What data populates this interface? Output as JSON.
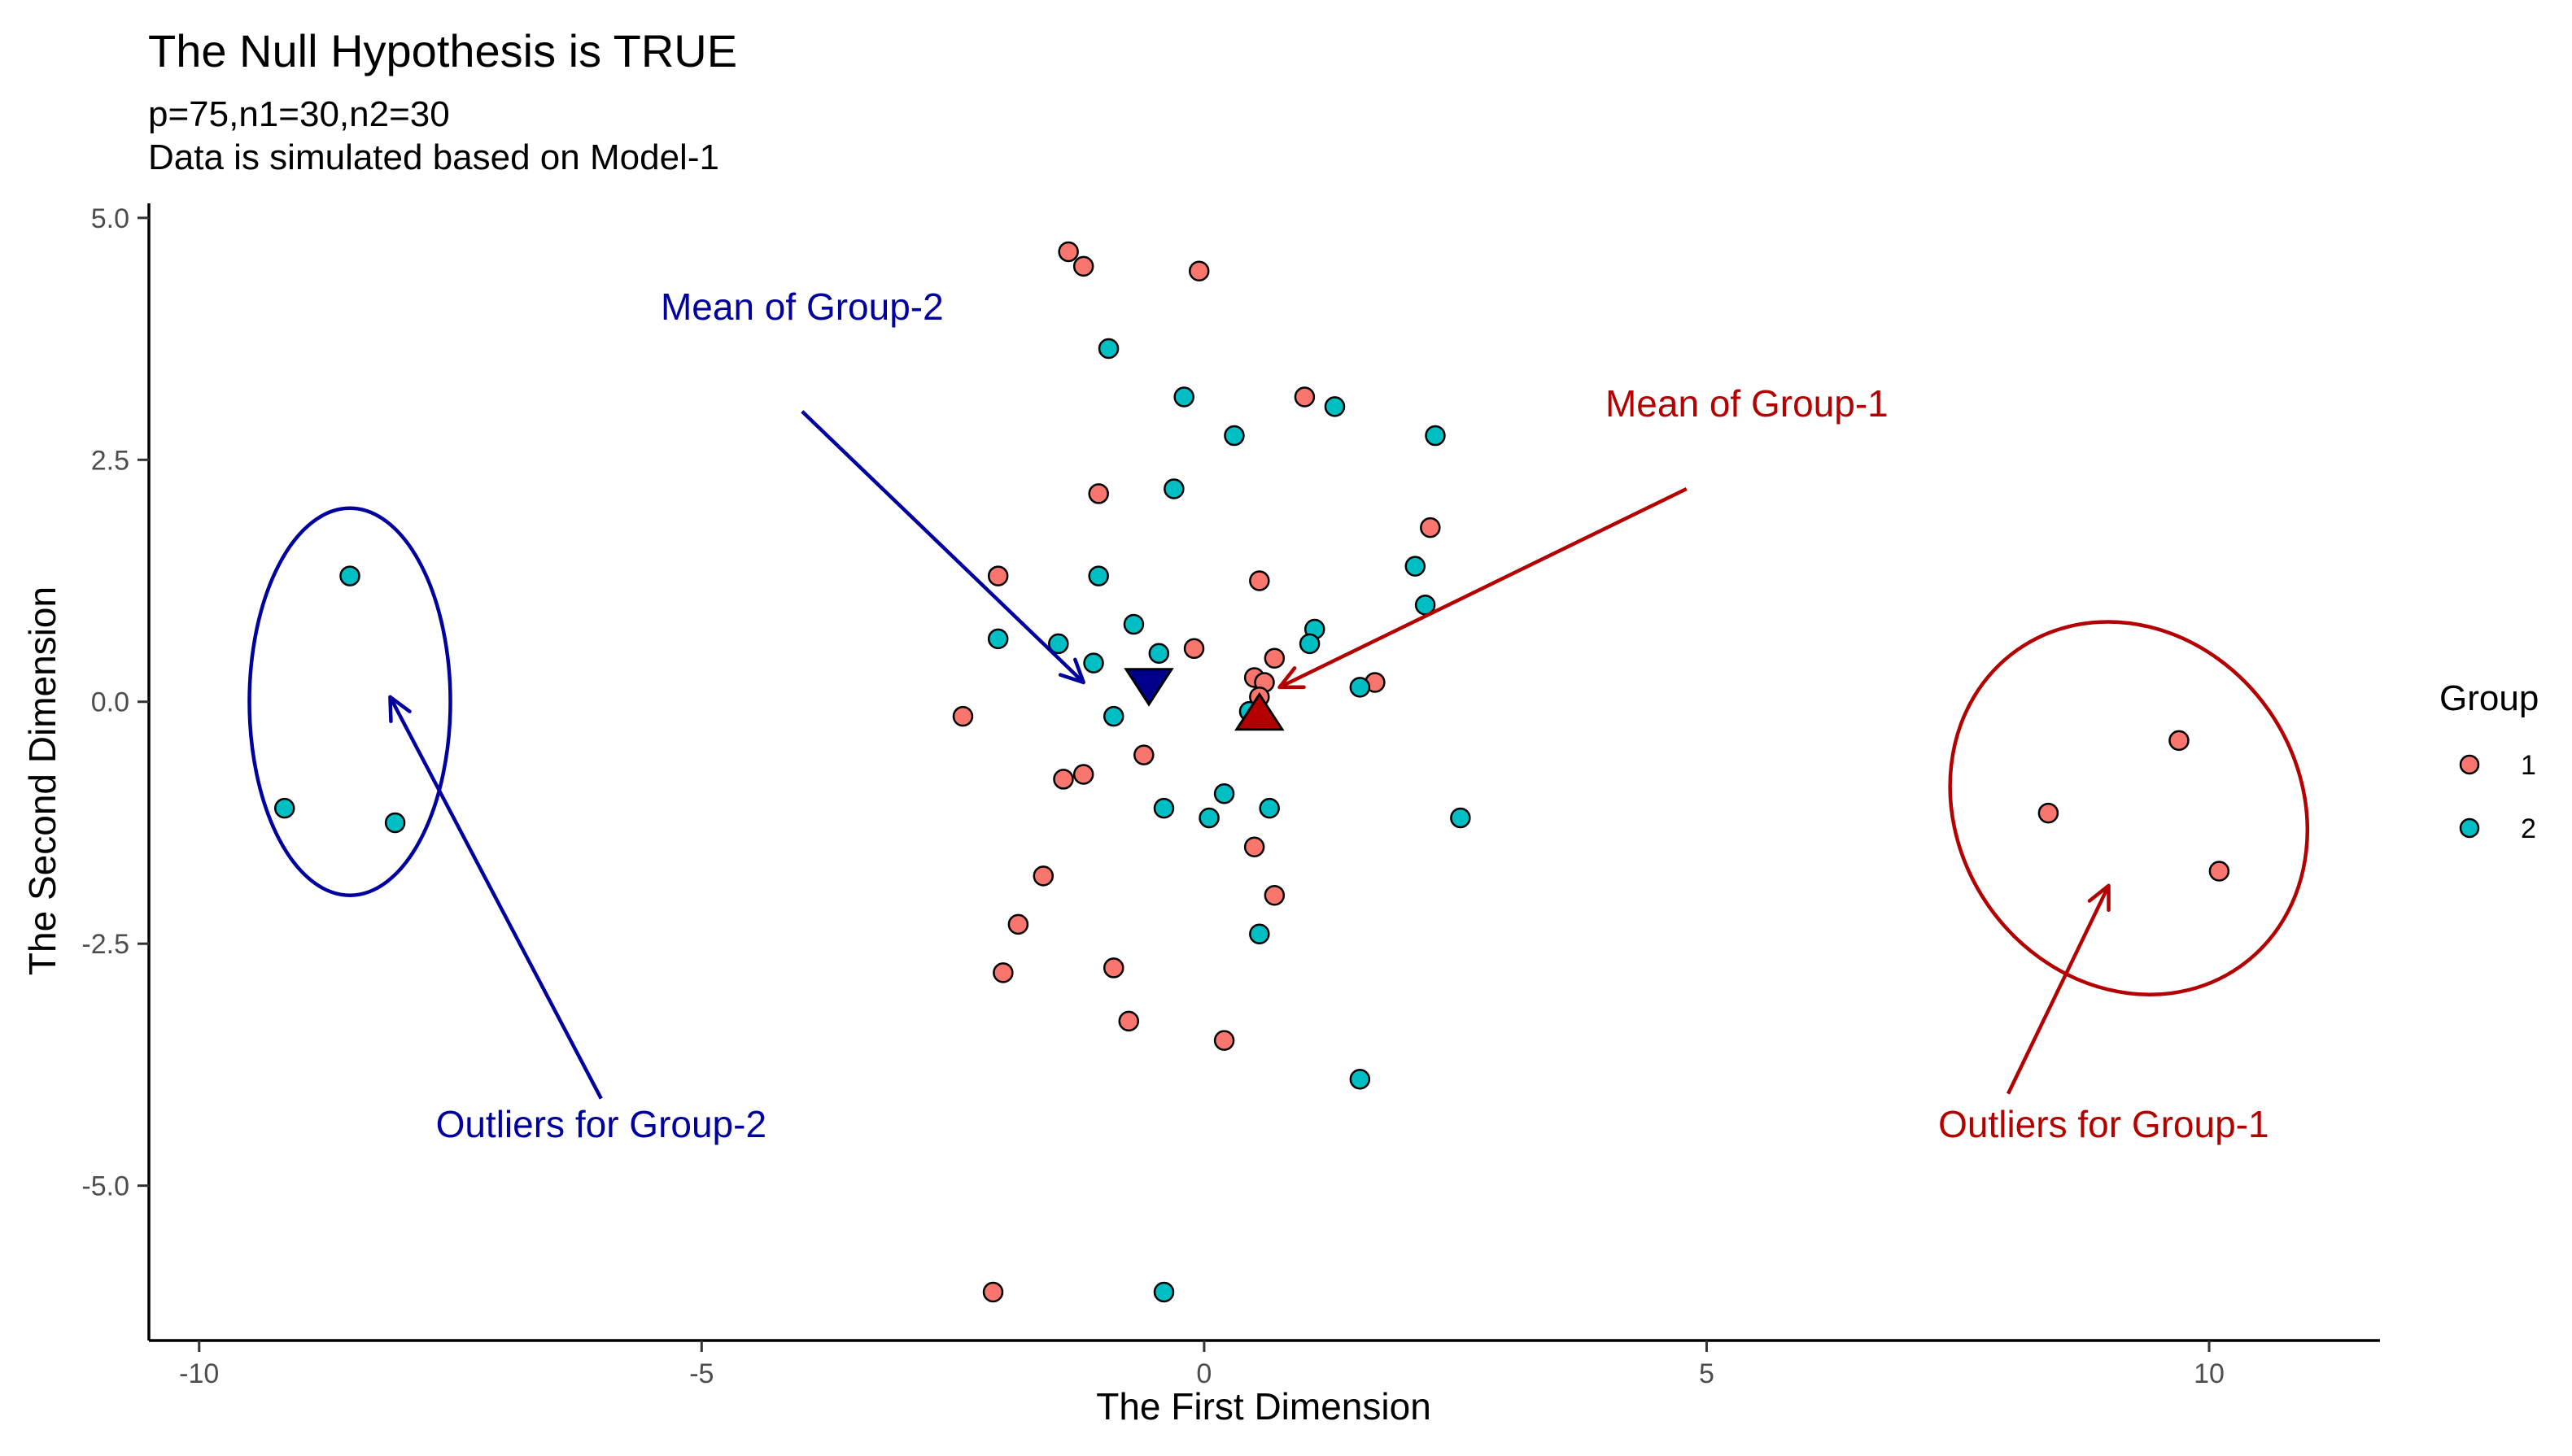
{
  "chart_data": {
    "type": "scatter",
    "title": "The Null Hypothesis is TRUE",
    "subtitle_lines": [
      "p=75,n1=30,n2=30",
      "Data is simulated based on Model-1"
    ],
    "xlabel": "The First Dimension",
    "ylabel": "The Second Dimension",
    "xlim": [
      -10.5,
      11.7
    ],
    "ylim": [
      -6.6,
      5.15
    ],
    "x_ticks": [
      -10,
      -5,
      0,
      5,
      10
    ],
    "x_tick_labels": [
      "-10",
      "-5",
      "0",
      "5",
      "10"
    ],
    "y_ticks": [
      5,
      2.5,
      0,
      -2.5,
      -5
    ],
    "y_tick_labels": [
      "5.0",
      "2.5",
      "0.0",
      "-2.5",
      "-5.0"
    ],
    "grid": false,
    "legend": {
      "title": "Group",
      "position": "right",
      "entries": [
        {
          "label": "1",
          "color": "#F8766D"
        },
        {
          "label": "2",
          "color": "#00BFC4"
        }
      ]
    },
    "series": [
      {
        "name": "1",
        "color": "#F8766D",
        "points": [
          [
            -1.35,
            4.65
          ],
          [
            -1.2,
            4.5
          ],
          [
            -0.05,
            4.45
          ],
          [
            1.0,
            3.15
          ],
          [
            -1.05,
            2.15
          ],
          [
            2.25,
            1.8
          ],
          [
            -2.05,
            1.3
          ],
          [
            0.55,
            1.25
          ],
          [
            -0.1,
            0.55
          ],
          [
            0.7,
            0.45
          ],
          [
            1.7,
            0.2
          ],
          [
            0.5,
            0.25
          ],
          [
            0.6,
            0.2
          ],
          [
            0.55,
            0.05
          ],
          [
            -2.4,
            -0.15
          ],
          [
            -0.6,
            -0.55
          ],
          [
            -1.2,
            -0.75
          ],
          [
            -1.4,
            -0.8
          ],
          [
            0.5,
            -1.5
          ],
          [
            -1.6,
            -1.8
          ],
          [
            0.7,
            -2.0
          ],
          [
            -1.85,
            -2.3
          ],
          [
            -2.0,
            -2.8
          ],
          [
            -0.9,
            -2.75
          ],
          [
            -0.75,
            -3.3
          ],
          [
            0.2,
            -3.5
          ],
          [
            -2.1,
            -6.1
          ],
          [
            8.4,
            -1.15
          ],
          [
            9.7,
            -0.4
          ],
          [
            10.1,
            -1.75
          ]
        ]
      },
      {
        "name": "2",
        "color": "#00BFC4",
        "points": [
          [
            -0.95,
            3.65
          ],
          [
            -0.2,
            3.15
          ],
          [
            1.3,
            3.05
          ],
          [
            0.3,
            2.75
          ],
          [
            2.3,
            2.75
          ],
          [
            -0.3,
            2.2
          ],
          [
            2.1,
            1.4
          ],
          [
            -1.05,
            1.3
          ],
          [
            2.2,
            1.0
          ],
          [
            1.1,
            0.75
          ],
          [
            -0.7,
            0.8
          ],
          [
            1.05,
            0.6
          ],
          [
            -2.05,
            0.65
          ],
          [
            -1.45,
            0.6
          ],
          [
            -0.45,
            0.5
          ],
          [
            -1.1,
            0.4
          ],
          [
            1.55,
            0.15
          ],
          [
            -0.9,
            -0.15
          ],
          [
            0.45,
            -0.1
          ],
          [
            0.2,
            -0.95
          ],
          [
            -0.4,
            -1.1
          ],
          [
            0.65,
            -1.1
          ],
          [
            0.05,
            -1.2
          ],
          [
            2.55,
            -1.2
          ],
          [
            0.55,
            -2.4
          ],
          [
            1.55,
            -3.9
          ],
          [
            -0.4,
            -6.1
          ],
          [
            -8.5,
            1.3
          ],
          [
            -9.15,
            -1.1
          ],
          [
            -8.05,
            -1.25
          ]
        ]
      }
    ],
    "mean_markers": [
      {
        "label": "Mean of Group-1",
        "shape": "triangle-up",
        "x": 0.55,
        "y": -0.15,
        "color": "#B30000"
      },
      {
        "label": "Mean of Group-2",
        "shape": "triangle-down",
        "x": -0.55,
        "y": 0.2,
        "color": "#00008B"
      }
    ],
    "annotations": [
      {
        "text": "Mean of Group-2",
        "color": "#00009F",
        "x": -4.0,
        "y": 3.95
      },
      {
        "text": "Mean of Group-1",
        "color": "#B30000",
        "x": 5.4,
        "y": 2.95
      },
      {
        "text": "Outliers for Group-2",
        "color": "#00009F",
        "x": -6.0,
        "y": -4.5
      },
      {
        "text": "Outliers for Group-1",
        "color": "#B30000",
        "x": 8.95,
        "y": -4.5
      }
    ],
    "arrows": [
      {
        "color": "#00009F",
        "from": [
          -4.0,
          3.0
        ],
        "to": [
          -1.2,
          0.2
        ]
      },
      {
        "color": "#B30000",
        "from": [
          4.8,
          2.2
        ],
        "to": [
          0.75,
          0.15
        ]
      },
      {
        "color": "#00009F",
        "from": [
          -6.0,
          -4.1
        ],
        "to": [
          -8.1,
          0.05
        ]
      },
      {
        "color": "#B30000",
        "from": [
          8.0,
          -4.05
        ],
        "to": [
          9.0,
          -1.9
        ]
      }
    ],
    "ellipses": [
      {
        "color": "#00009F",
        "cx": -8.5,
        "cy": 0.0,
        "rx": 1.0,
        "ry": 2.0,
        "angle": 0
      },
      {
        "color": "#B30000",
        "cx": 9.2,
        "cy": -1.1,
        "rx": 1.7,
        "ry": 2.0,
        "angle": -35
      }
    ]
  }
}
